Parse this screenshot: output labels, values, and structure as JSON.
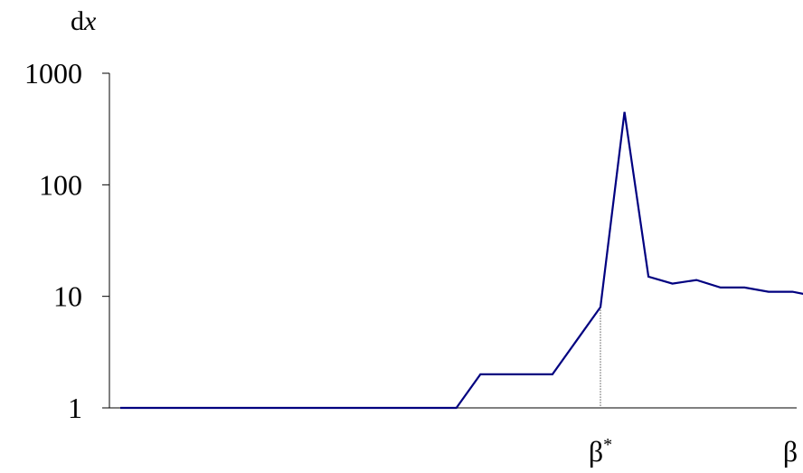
{
  "chart_data": {
    "type": "line",
    "title": "",
    "xlabel": "β",
    "ylabel_text": "d",
    "ylabel_var": "x",
    "yscale": "log",
    "ylim": [
      1,
      1000
    ],
    "y_ticks": [
      1,
      10,
      100,
      1000
    ],
    "y_tick_labels": [
      "1",
      "10",
      "100",
      "1000"
    ],
    "x_marker": {
      "label_base": "β",
      "label_sup": "*",
      "index": 20
    },
    "grid": false,
    "legend": "none",
    "line_color": "#000080",
    "series": [
      {
        "values": [
          1,
          1,
          1,
          1,
          1,
          1,
          1,
          1,
          1,
          1,
          1,
          1,
          1,
          1,
          1,
          2,
          2,
          2,
          2,
          4,
          8,
          450,
          15,
          13,
          14,
          12,
          12,
          11,
          11,
          10
        ]
      }
    ]
  }
}
